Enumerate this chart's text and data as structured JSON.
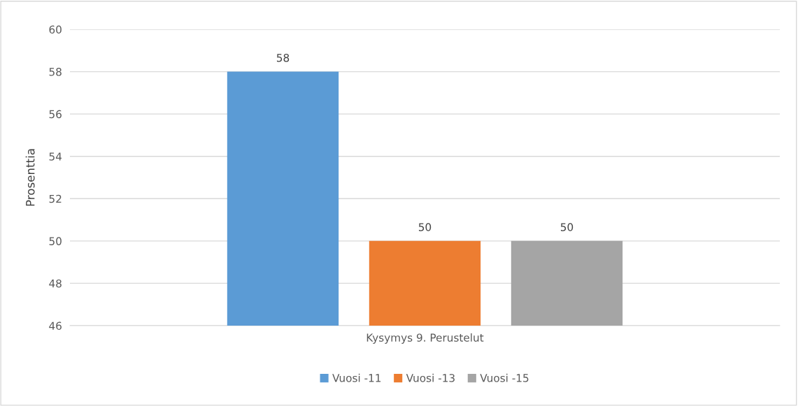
{
  "chart_data": {
    "type": "bar",
    "ylabel": "Prosenttia",
    "categories": [
      "Kysymys 9. Perustelut"
    ],
    "series": [
      {
        "name": "Vuosi -11",
        "color": "#5b9bd5",
        "values": [
          58
        ]
      },
      {
        "name": "Vuosi -13",
        "color": "#ed7d31",
        "values": [
          50
        ]
      },
      {
        "name": "Vuosi -15",
        "color": "#a5a5a5",
        "values": [
          50
        ]
      }
    ],
    "ylim": [
      46,
      60
    ],
    "yticks": [
      46,
      48,
      50,
      52,
      54,
      56,
      58,
      60
    ],
    "grid": "y",
    "legend": "bottom",
    "data_labels": true
  }
}
